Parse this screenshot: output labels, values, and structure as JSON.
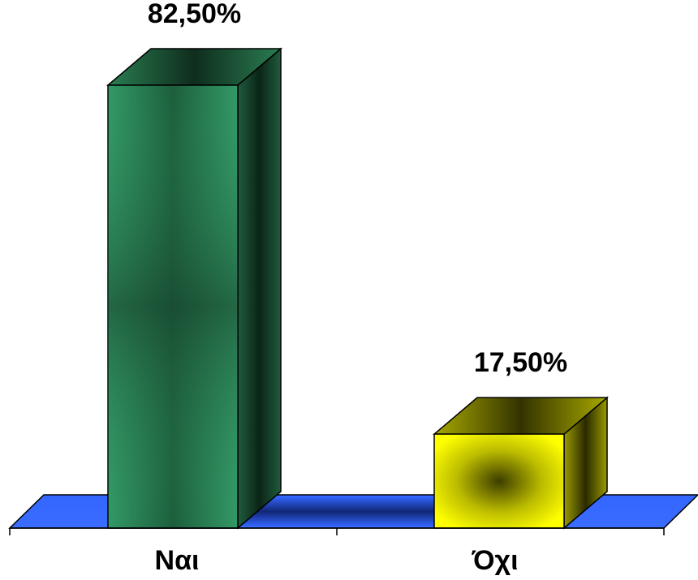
{
  "chart_data": {
    "type": "bar",
    "categories": [
      "Ναι",
      "Όχι"
    ],
    "values": [
      82.5,
      17.5
    ],
    "value_labels": [
      "82,50%",
      "17,50%"
    ],
    "colors": [
      "#339966",
      "#FFFF00"
    ],
    "floor_color": "#3366FF",
    "ylim": [
      0,
      100
    ],
    "grid": false,
    "legend": "none",
    "three_d": true
  }
}
